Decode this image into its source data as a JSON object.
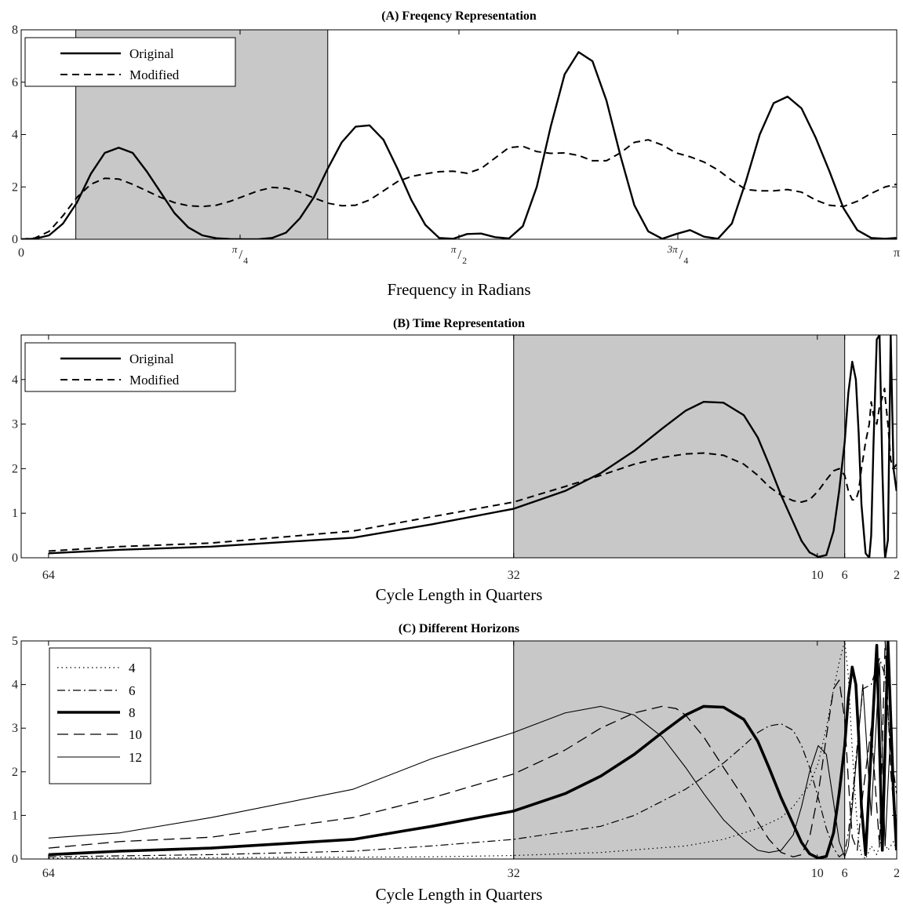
{
  "chart_data": [
    {
      "id": "A",
      "type": "line",
      "title": "(A) Freqency Representation",
      "xlabel": "Frequency in Radians",
      "ylabel": "",
      "xlim": [
        0,
        3.14159
      ],
      "ylim": [
        0,
        8
      ],
      "grid": false,
      "legend_position": "top-left",
      "yticks": [
        0,
        2,
        4,
        6,
        8
      ],
      "xticks": [
        {
          "value": 0,
          "label": "0"
        },
        {
          "value": 0.7854,
          "label": "π/4",
          "num": "π",
          "den": "4"
        },
        {
          "value": 1.5708,
          "label": "π/2",
          "num": "π",
          "den": "2"
        },
        {
          "value": 2.3562,
          "label": "3π/4",
          "num": "3π",
          "den": "4"
        },
        {
          "value": 3.1416,
          "label": "π"
        }
      ],
      "shaded_band": [
        0.196,
        1.1
      ],
      "series": [
        {
          "name": "Original",
          "style": "solid",
          "width": 2.4,
          "x": [
            0,
            0.05,
            0.1,
            0.15,
            0.2,
            0.25,
            0.3,
            0.35,
            0.4,
            0.45,
            0.5,
            0.55,
            0.6,
            0.65,
            0.7,
            0.75,
            0.8,
            0.85,
            0.9,
            0.95,
            1.0,
            1.05,
            1.1,
            1.15,
            1.2,
            1.25,
            1.3,
            1.35,
            1.4,
            1.45,
            1.5,
            1.55,
            1.6,
            1.65,
            1.7,
            1.75,
            1.8,
            1.85,
            1.9,
            1.95,
            2.0,
            2.05,
            2.1,
            2.15,
            2.2,
            2.25,
            2.3,
            2.35,
            2.4,
            2.45,
            2.5,
            2.55,
            2.6,
            2.65,
            2.7,
            2.75,
            2.8,
            2.85,
            2.9,
            2.95,
            3.0,
            3.05,
            3.1,
            3.14
          ],
          "y": [
            0,
            0.02,
            0.15,
            0.6,
            1.4,
            2.5,
            3.3,
            3.5,
            3.3,
            2.6,
            1.8,
            1.0,
            0.45,
            0.15,
            0.04,
            0.01,
            0.0,
            0.0,
            0.05,
            0.25,
            0.8,
            1.6,
            2.7,
            3.7,
            4.3,
            4.35,
            3.8,
            2.7,
            1.5,
            0.55,
            0.05,
            0.02,
            0.2,
            0.22,
            0.08,
            0.03,
            0.5,
            2.0,
            4.3,
            6.3,
            7.15,
            6.8,
            5.3,
            3.2,
            1.3,
            0.3,
            0.02,
            0.2,
            0.35,
            0.1,
            0.02,
            0.6,
            2.2,
            4.0,
            5.2,
            5.45,
            5.0,
            3.9,
            2.6,
            1.2,
            0.35,
            0.05,
            0.02,
            0.05
          ]
        },
        {
          "name": "Modified",
          "style": "dashed",
          "width": 2.0,
          "x": [
            0,
            0.05,
            0.1,
            0.15,
            0.2,
            0.25,
            0.3,
            0.35,
            0.4,
            0.45,
            0.5,
            0.55,
            0.6,
            0.65,
            0.7,
            0.75,
            0.8,
            0.85,
            0.9,
            0.95,
            1.0,
            1.05,
            1.1,
            1.15,
            1.2,
            1.25,
            1.3,
            1.35,
            1.4,
            1.45,
            1.5,
            1.55,
            1.6,
            1.65,
            1.7,
            1.75,
            1.8,
            1.85,
            1.9,
            1.95,
            2.0,
            2.05,
            2.1,
            2.15,
            2.2,
            2.25,
            2.3,
            2.35,
            2.4,
            2.45,
            2.5,
            2.55,
            2.6,
            2.65,
            2.7,
            2.75,
            2.8,
            2.85,
            2.9,
            2.95,
            3.0,
            3.05,
            3.1,
            3.14
          ],
          "y": [
            0,
            0.05,
            0.3,
            0.9,
            1.6,
            2.1,
            2.33,
            2.3,
            2.1,
            1.85,
            1.6,
            1.4,
            1.28,
            1.25,
            1.3,
            1.45,
            1.65,
            1.85,
            1.98,
            1.95,
            1.8,
            1.58,
            1.38,
            1.28,
            1.3,
            1.5,
            1.85,
            2.2,
            2.4,
            2.5,
            2.58,
            2.6,
            2.52,
            2.7,
            3.1,
            3.5,
            3.55,
            3.35,
            3.28,
            3.3,
            3.2,
            3.0,
            3.0,
            3.3,
            3.7,
            3.8,
            3.6,
            3.3,
            3.15,
            2.95,
            2.65,
            2.25,
            1.9,
            1.85,
            1.85,
            1.9,
            1.8,
            1.5,
            1.3,
            1.25,
            1.45,
            1.75,
            2.0,
            2.1
          ]
        }
      ]
    },
    {
      "id": "B",
      "type": "line",
      "title": "(B) Time Representation",
      "xlabel": "Cycle Length in Quarters",
      "ylabel": "",
      "xlim": [
        0,
        3.14159
      ],
      "ylim": [
        0,
        5
      ],
      "grid": false,
      "legend_position": "top-left",
      "yticks": [
        0,
        1,
        2,
        3,
        4
      ],
      "xticks": [
        {
          "value": 0.0982,
          "label": "64"
        },
        {
          "value": 1.7671,
          "label": "32"
        },
        {
          "value": 2.8567,
          "label": "10"
        },
        {
          "value": 2.9549,
          "label": "6"
        },
        {
          "value": 3.1416,
          "label": "2"
        }
      ],
      "shaded_band": [
        1.7671,
        2.9549
      ],
      "series": [
        {
          "name": "Original",
          "style": "solid",
          "width": 2.4,
          "x": [
            0.0982,
            0.354,
            0.6815,
            1.1914,
            1.4728,
            1.7671,
            1.952,
            2.0795,
            2.2,
            2.3,
            2.384,
            2.449,
            2.52,
            2.593,
            2.643,
            2.683,
            2.727,
            2.77,
            2.8,
            2.829,
            2.86,
            2.889,
            2.915,
            2.935,
            2.955,
            2.968,
            2.982,
            2.995,
            3.005,
            3.015,
            3.03,
            3.043,
            3.05,
            3.058,
            3.07,
            3.08,
            3.09,
            3.098,
            3.1,
            3.11,
            3.12,
            3.13,
            3.141
          ],
          "y": [
            0.1,
            0.18,
            0.25,
            0.45,
            0.75,
            1.1,
            1.5,
            1.9,
            2.4,
            2.9,
            3.3,
            3.5,
            3.48,
            3.2,
            2.7,
            2.1,
            1.4,
            0.8,
            0.38,
            0.12,
            0.02,
            0.06,
            0.6,
            1.5,
            2.6,
            3.7,
            4.4,
            4.0,
            2.8,
            1.2,
            0.1,
            0.0,
            0.5,
            2.5,
            4.9,
            5.0,
            2.0,
            0.2,
            0.0,
            0.4,
            5.0,
            2.0,
            1.5
          ]
        },
        {
          "name": "Modified",
          "style": "dashed",
          "width": 2.0,
          "x": [
            0.0982,
            0.354,
            0.6815,
            1.1914,
            1.4728,
            1.7671,
            1.952,
            2.0795,
            2.2,
            2.3,
            2.384,
            2.449,
            2.52,
            2.593,
            2.643,
            2.683,
            2.727,
            2.77,
            2.8,
            2.829,
            2.86,
            2.889,
            2.915,
            2.935,
            2.955,
            2.968,
            2.982,
            2.995,
            3.005,
            3.015,
            3.03,
            3.043,
            3.05,
            3.058,
            3.07,
            3.08,
            3.09,
            3.098,
            3.1,
            3.11,
            3.12,
            3.13,
            3.141
          ],
          "y": [
            0.15,
            0.25,
            0.33,
            0.6,
            0.92,
            1.25,
            1.6,
            1.85,
            2.1,
            2.25,
            2.33,
            2.35,
            2.3,
            2.1,
            1.85,
            1.6,
            1.4,
            1.28,
            1.25,
            1.3,
            1.5,
            1.75,
            1.95,
            2.0,
            1.85,
            1.5,
            1.3,
            1.3,
            1.5,
            2.0,
            2.6,
            3.0,
            3.5,
            3.2,
            3.0,
            3.4,
            3.6,
            3.8,
            3.6,
            3.0,
            2.2,
            2.0,
            2.1
          ]
        }
      ]
    },
    {
      "id": "C",
      "type": "line",
      "title": "(C) Different Horizons",
      "xlabel": "Cycle Length in Quarters",
      "ylabel": "",
      "xlim": [
        0,
        3.14159
      ],
      "ylim": [
        0,
        5
      ],
      "grid": false,
      "legend_position": "top-left",
      "yticks": [
        0,
        1,
        2,
        3,
        4,
        5
      ],
      "xticks": [
        {
          "value": 0.0982,
          "label": "64"
        },
        {
          "value": 1.7671,
          "label": "32"
        },
        {
          "value": 2.8567,
          "label": "10"
        },
        {
          "value": 2.9549,
          "label": "6"
        },
        {
          "value": 3.1416,
          "label": "2"
        }
      ],
      "shaded_band": [
        1.7671,
        2.9549
      ],
      "series": [
        {
          "name": "4",
          "style": "dotted",
          "width": 1.2,
          "x": [
            0.0982,
            0.6815,
            1.4728,
            1.7671,
            2.0795,
            2.384,
            2.52,
            2.643,
            2.727,
            2.77,
            2.829,
            2.86,
            2.889,
            2.915,
            2.935,
            2.955,
            2.968,
            2.982,
            2.995,
            3.005,
            3.015,
            3.03,
            3.05,
            3.07,
            3.09,
            3.11,
            3.13,
            3.141
          ],
          "y": [
            0.02,
            0.03,
            0.05,
            0.08,
            0.15,
            0.3,
            0.45,
            0.7,
            0.95,
            1.2,
            1.7,
            2.2,
            3.0,
            3.9,
            4.5,
            5.0,
            4.2,
            2.5,
            1.2,
            0.4,
            0.1,
            0.0,
            0.3,
            0.1,
            0.5,
            0.2,
            0.4,
            0.2
          ]
        },
        {
          "name": "6",
          "style": "dashdot",
          "width": 1.2,
          "x": [
            0.0982,
            0.6815,
            1.1914,
            1.4728,
            1.7671,
            2.0795,
            2.2,
            2.384,
            2.52,
            2.593,
            2.643,
            2.683,
            2.727,
            2.77,
            2.8,
            2.829,
            2.86,
            2.889,
            2.915,
            2.935,
            2.955,
            2.968,
            2.982,
            3.0,
            3.02,
            3.05,
            3.08,
            3.1,
            3.12,
            3.141
          ],
          "y": [
            0.05,
            0.1,
            0.18,
            0.3,
            0.45,
            0.75,
            1.0,
            1.6,
            2.2,
            2.6,
            2.9,
            3.05,
            3.1,
            2.95,
            2.6,
            2.1,
            1.4,
            0.7,
            0.25,
            0.05,
            0.15,
            0.6,
            1.4,
            2.6,
            3.9,
            4.0,
            4.6,
            4.2,
            2.5,
            1.5
          ]
        },
        {
          "name": "8",
          "style": "solid",
          "width": 3.6,
          "x": [
            0.0982,
            0.354,
            0.6815,
            1.1914,
            1.4728,
            1.7671,
            1.952,
            2.0795,
            2.2,
            2.3,
            2.384,
            2.449,
            2.52,
            2.593,
            2.643,
            2.683,
            2.727,
            2.77,
            2.8,
            2.829,
            2.86,
            2.889,
            2.915,
            2.935,
            2.955,
            2.968,
            2.982,
            2.995,
            3.005,
            3.015,
            3.03,
            3.05,
            3.07,
            3.09,
            3.11,
            3.13,
            3.141
          ],
          "y": [
            0.1,
            0.18,
            0.25,
            0.45,
            0.75,
            1.1,
            1.5,
            1.9,
            2.4,
            2.9,
            3.3,
            3.5,
            3.48,
            3.2,
            2.7,
            2.1,
            1.4,
            0.8,
            0.38,
            0.12,
            0.02,
            0.06,
            0.6,
            1.5,
            2.6,
            3.7,
            4.4,
            4.0,
            2.8,
            1.2,
            0.1,
            2.5,
            4.9,
            0.2,
            5.0,
            1.5,
            0.2
          ]
        },
        {
          "name": "10",
          "style": "dashed-long",
          "width": 1.3,
          "x": [
            0.0982,
            0.354,
            0.6815,
            1.1914,
            1.4728,
            1.7671,
            1.952,
            2.0795,
            2.2,
            2.3,
            2.35,
            2.384,
            2.449,
            2.52,
            2.593,
            2.643,
            2.683,
            2.727,
            2.77,
            2.8,
            2.829,
            2.86,
            2.889,
            2.915,
            2.935,
            2.955,
            2.968,
            2.982,
            3.0,
            3.02,
            3.05,
            3.08,
            3.1,
            3.12,
            3.141
          ],
          "y": [
            0.25,
            0.4,
            0.5,
            0.95,
            1.4,
            1.95,
            2.5,
            3.0,
            3.35,
            3.5,
            3.45,
            3.3,
            2.8,
            2.1,
            1.4,
            0.85,
            0.45,
            0.15,
            0.05,
            0.1,
            0.5,
            1.5,
            2.8,
            3.9,
            4.1,
            3.2,
            1.8,
            0.5,
            0.2,
            1.5,
            3.0,
            0.3,
            5.0,
            2.0,
            0.5
          ]
        },
        {
          "name": "12",
          "style": "solid",
          "width": 1.1,
          "x": [
            0.0982,
            0.354,
            0.6815,
            1.1914,
            1.4728,
            1.7671,
            1.952,
            2.0795,
            2.2,
            2.3,
            2.384,
            2.449,
            2.52,
            2.593,
            2.643,
            2.683,
            2.727,
            2.77,
            2.8,
            2.829,
            2.86,
            2.889,
            2.915,
            2.935,
            2.955,
            2.968,
            2.982,
            3.0,
            3.02,
            3.05,
            3.08,
            3.1,
            3.12,
            3.141
          ],
          "y": [
            0.48,
            0.6,
            0.95,
            1.6,
            2.3,
            2.9,
            3.35,
            3.5,
            3.3,
            2.8,
            2.1,
            1.5,
            0.9,
            0.45,
            0.2,
            0.15,
            0.2,
            0.55,
            1.2,
            2.0,
            2.6,
            2.4,
            1.3,
            0.4,
            0.05,
            0.3,
            1.2,
            2.5,
            4.0,
            1.0,
            4.5,
            0.3,
            3.0,
            0.5
          ]
        }
      ]
    }
  ],
  "legend_C_labels": [
    "4",
    "6",
    "8",
    "10",
    "12"
  ]
}
